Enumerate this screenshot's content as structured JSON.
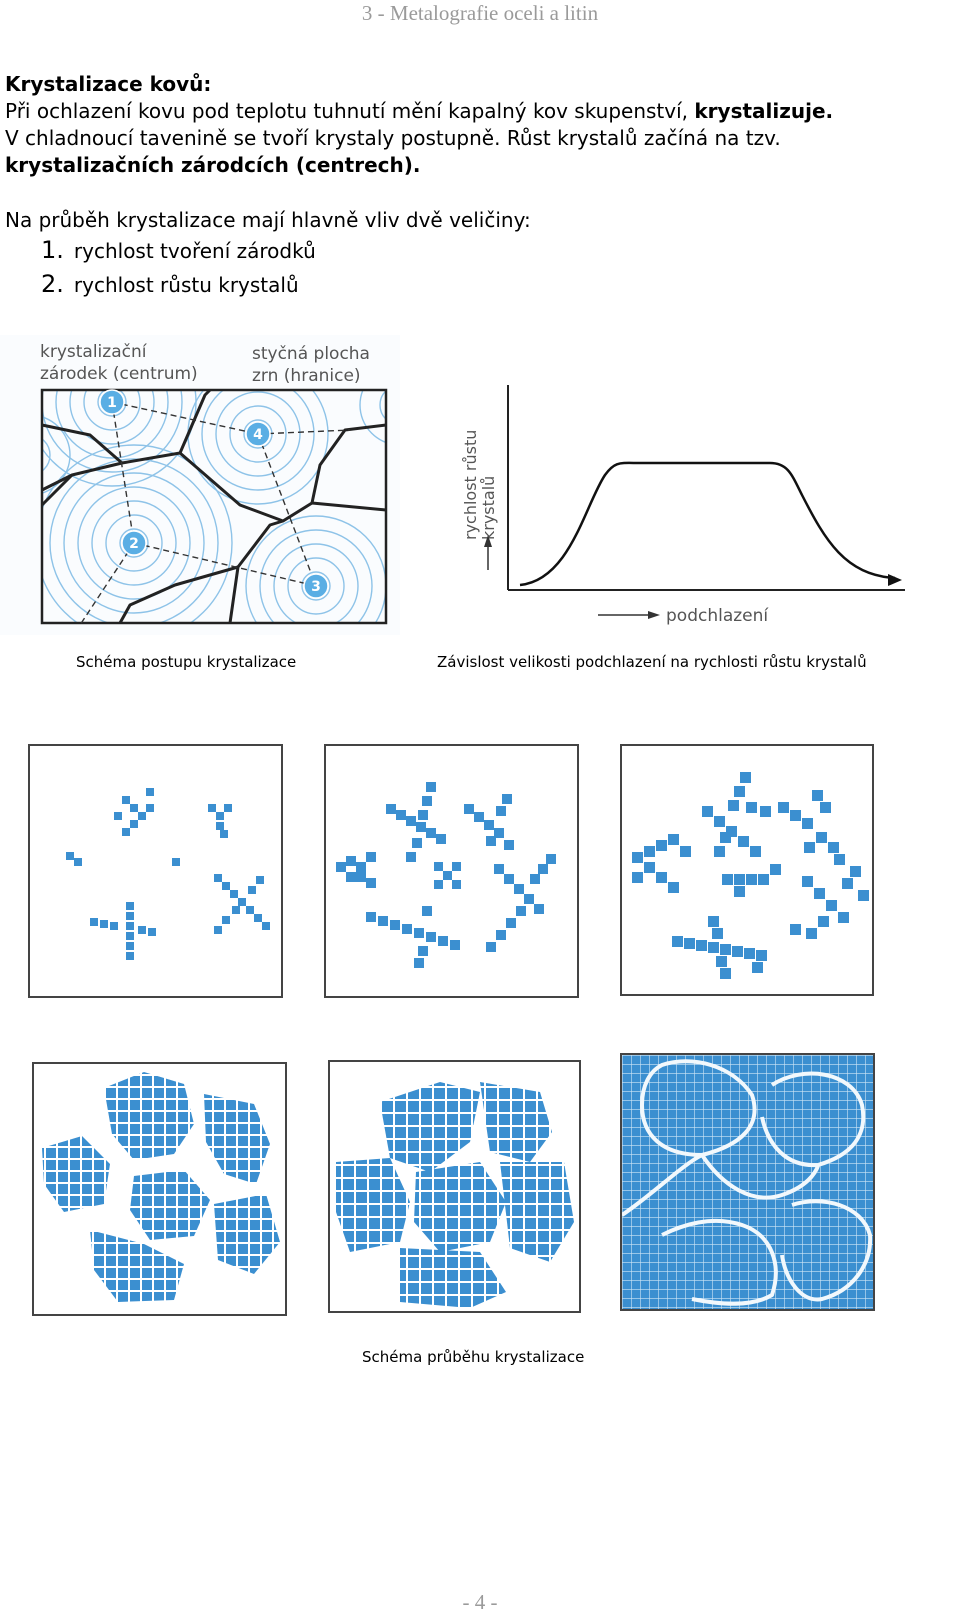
{
  "header": "3 - Metalografie oceli a litin",
  "title": "Krystalizace kovů:",
  "para1_line1_plain": "Při ochlazení kovu pod teplotu tuhnutí mění kapalný kov skupenství, ",
  "para1_line1_bold": "krystalizuje.",
  "para1_line2": "V chladnoucí tavenině se tvoří krystaly postupně. Růst krystalů začíná na tzv.",
  "para1_line3": "krystalizačních zárodcích (centrech).",
  "intro": "Na průběh krystalizace mají hlavně vliv dvě veličiny:",
  "list": [
    {
      "num": "1.",
      "text": "rychlost tvoření zárodků"
    },
    {
      "num": "2.",
      "text": "rychlost růstu krystalů"
    }
  ],
  "schema": {
    "label_nucleus_1": "krystalizační",
    "label_nucleus_2": "zárodek (centrum)",
    "label_boundary_1": "styčná plocha",
    "label_boundary_2": "zrn (hranice)",
    "nuclei": [
      "1",
      "2",
      "3",
      "4"
    ]
  },
  "growth_chart": {
    "ylabel_1": "rychlost růstu",
    "ylabel_2": "krystalů",
    "xlabel": "podchlazení"
  },
  "captions": {
    "schema": "Schéma postupu krystalizace",
    "chart": "Závislost velikosti podchlazení na rychlosti růstu krystalů",
    "stages": "Schéma průběhu krystalizace"
  },
  "colors": {
    "crystal_blue": "#3b8fd0",
    "header_gray": "#9a9a9a"
  },
  "footer": "- 4 -"
}
